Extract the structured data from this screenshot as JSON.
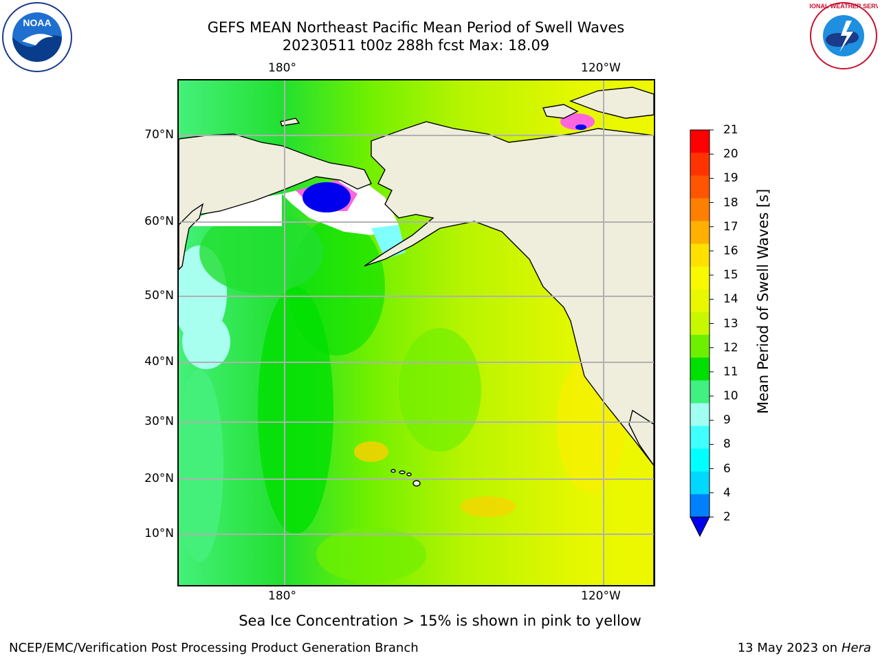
{
  "title": {
    "line1": "GEFS MEAN Northeast Pacific Mean Period of Swell Waves",
    "line2": "20230511 t00z 288h fcst   Max: 18.09"
  },
  "map": {
    "lat_labels": [
      "70°N",
      "60°N",
      "50°N",
      "40°N",
      "30°N",
      "20°N",
      "10°N"
    ],
    "lon_labels": [
      "180°",
      "120°W"
    ],
    "land_color": "#efeddc",
    "grid_color": "#b0b0b0"
  },
  "colorbar": {
    "title": "Mean Period of Swell Waves [s]",
    "tick_labels": [
      "21",
      "20",
      "19",
      "18",
      "17",
      "16",
      "15",
      "14",
      "13",
      "12",
      "11",
      "10",
      "9",
      "8",
      "6",
      "4",
      "2"
    ],
    "colors": [
      "#ff0000",
      "#ff3300",
      "#ff5500",
      "#ff8000",
      "#ffb000",
      "#ffe000",
      "#f8f800",
      "#e8f800",
      "#c8f800",
      "#6cf000",
      "#00e000",
      "#40f080",
      "#a0fff0",
      "#40ffff",
      "#00ffff",
      "#00d8ff",
      "#0080ff",
      "#0000ee"
    ]
  },
  "note": "Sea Ice Concentration > 15% is shown in pink to yellow",
  "footer": {
    "left": "NCEP/EMC/Verification Post Processing Product Generation Branch",
    "right_date": "13 May 2023 on",
    "right_host": "Hera"
  },
  "logos": {
    "noaa_text": "NOAA",
    "nws_text": "NATIONAL WEATHER SERVICE"
  }
}
